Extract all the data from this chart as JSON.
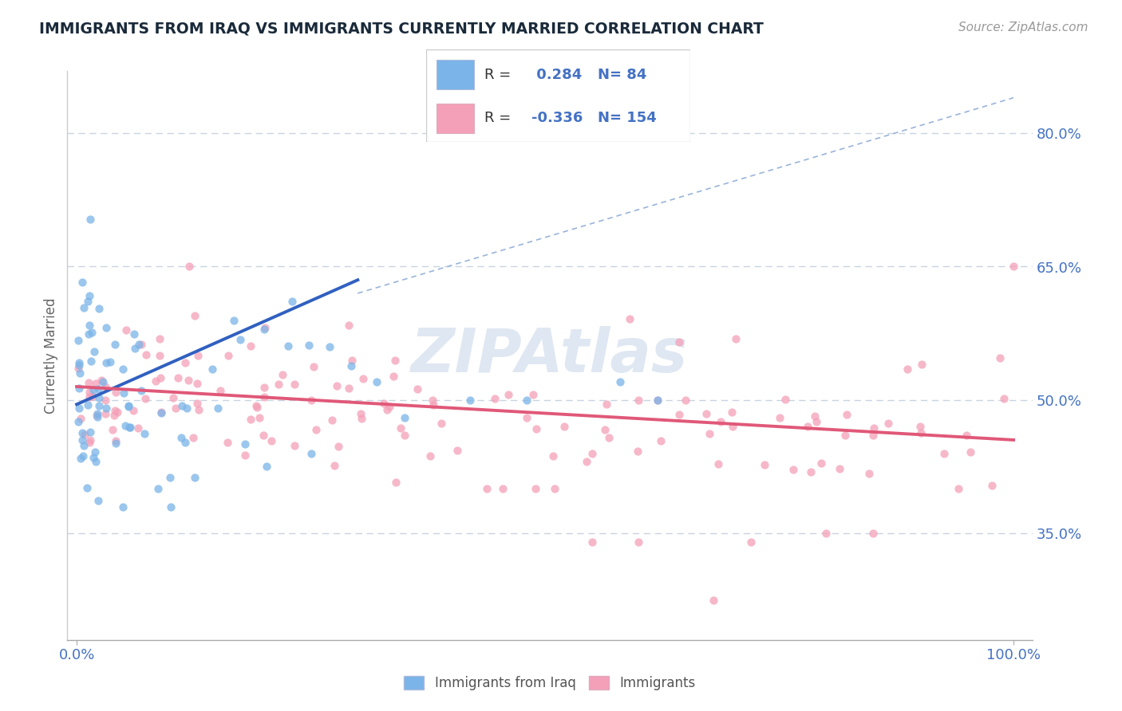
{
  "title": "IMMIGRANTS FROM IRAQ VS IMMIGRANTS CURRENTLY MARRIED CORRELATION CHART",
  "source_text": "Source: ZipAtlas.com",
  "ylabel": "Currently Married",
  "xlim": [
    -1.0,
    102.0
  ],
  "ylim": [
    23.0,
    87.0
  ],
  "y_ticks": [
    35.0,
    50.0,
    65.0,
    80.0
  ],
  "x_tick_labels": [
    "0.0%",
    "100.0%"
  ],
  "x_tick_positions": [
    0.0,
    100.0
  ],
  "blue_R": 0.284,
  "blue_N": 84,
  "pink_R": -0.336,
  "pink_N": 154,
  "blue_scatter_color": "#7ab4e8",
  "pink_scatter_color": "#f4a0b8",
  "blue_line_color": "#3060c0",
  "pink_line_color": "#e05878",
  "dashed_line_color": "#9ab4d8",
  "legend_label_blue": "Immigrants from Iraq",
  "legend_label_pink": "Immigrants",
  "watermark": "ZIPAtlas",
  "background_color": "#ffffff",
  "title_color": "#1a2a3a",
  "axis_tick_color": "#4472c4",
  "ylabel_color": "#666666",
  "source_color": "#999999",
  "grid_color": "#c8d4e0",
  "legend_text_color": "#4472c4",
  "legend_box_edge": "#cccccc",
  "blue_line_start_x": 0.0,
  "blue_line_end_x": 30.0,
  "blue_line_start_y": 49.5,
  "blue_line_end_y": 63.5,
  "pink_line_start_x": 0.0,
  "pink_line_end_x": 100.0,
  "pink_line_start_y": 51.5,
  "pink_line_end_y": 45.5,
  "diag_start_x": 30.0,
  "diag_start_y": 62.0,
  "diag_end_x": 100.0,
  "diag_end_y": 84.0
}
